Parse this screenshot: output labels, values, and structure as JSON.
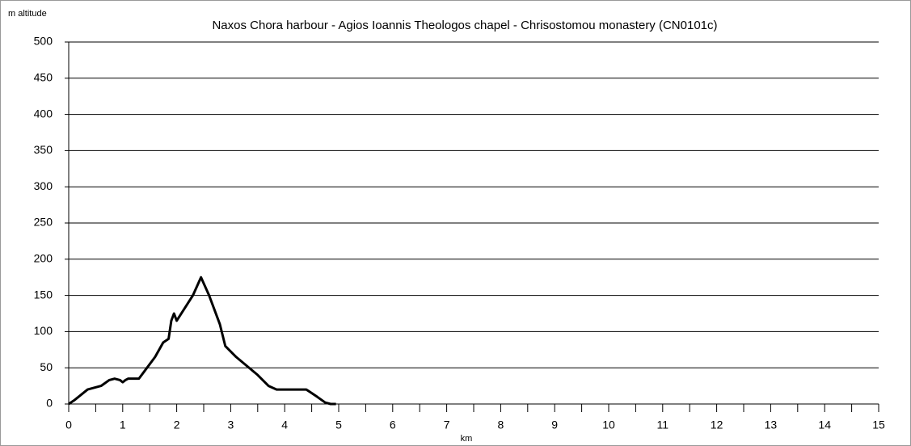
{
  "chart_data": {
    "type": "line",
    "title": "Naxos Chora harbour - Agios Ioannis Theologos chapel - Chrisostomou monastery (CN0101c)",
    "ylabel": "m altitude",
    "xlabel": "km",
    "xlim": [
      0,
      15
    ],
    "xticks": [
      0,
      1,
      2,
      3,
      4,
      5,
      6,
      7,
      8,
      9,
      10,
      11,
      12,
      13,
      14,
      15
    ],
    "ylim": [
      0,
      500
    ],
    "yticks": [
      0,
      50,
      100,
      150,
      200,
      250,
      300,
      350,
      400,
      450,
      500
    ],
    "grid": true,
    "x": [
      0,
      0.1,
      0.35,
      0.6,
      0.75,
      0.85,
      0.95,
      1.0,
      1.05,
      1.1,
      1.3,
      1.4,
      1.6,
      1.75,
      1.85,
      1.9,
      1.95,
      2.0,
      2.3,
      2.45,
      2.6,
      2.8,
      2.9,
      3.1,
      3.5,
      3.7,
      3.85,
      4.0,
      4.4,
      4.6,
      4.75,
      4.85,
      4.95
    ],
    "series": [
      {
        "name": "altitude",
        "color": "#000000",
        "values": [
          0,
          5,
          20,
          25,
          33,
          35,
          33,
          30,
          33,
          35,
          35,
          45,
          65,
          85,
          90,
          115,
          125,
          115,
          150,
          175,
          150,
          110,
          80,
          65,
          40,
          25,
          20,
          20,
          20,
          10,
          2,
          0,
          0
        ]
      }
    ]
  }
}
